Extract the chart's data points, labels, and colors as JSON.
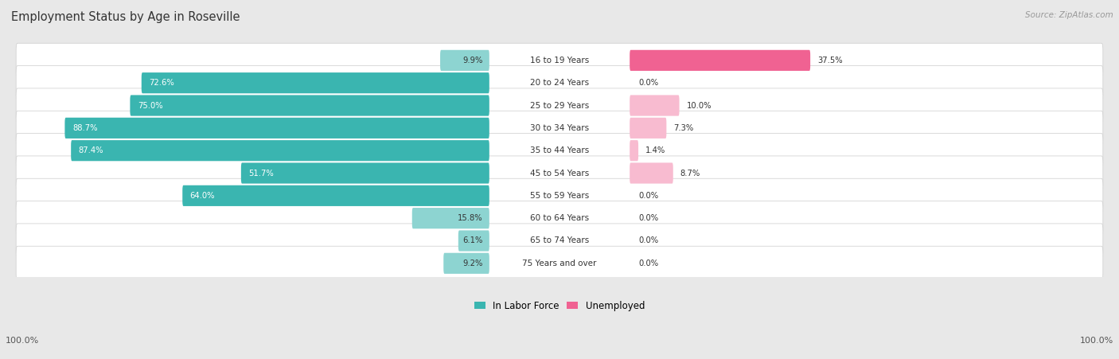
{
  "title": "Employment Status by Age in Roseville",
  "source": "Source: ZipAtlas.com",
  "categories": [
    "16 to 19 Years",
    "20 to 24 Years",
    "25 to 29 Years",
    "30 to 34 Years",
    "35 to 44 Years",
    "45 to 54 Years",
    "55 to 59 Years",
    "60 to 64 Years",
    "65 to 74 Years",
    "75 Years and over"
  ],
  "labor_force": [
    9.9,
    72.6,
    75.0,
    88.7,
    87.4,
    51.7,
    64.0,
    15.8,
    6.1,
    9.2
  ],
  "unemployed": [
    37.5,
    0.0,
    10.0,
    7.3,
    1.4,
    8.7,
    0.0,
    0.0,
    0.0,
    0.0
  ],
  "unemployed_show_zero": [
    true,
    true,
    true,
    true,
    true,
    true,
    true,
    true,
    true,
    true
  ],
  "lf_color_dark": "#3ab5b0",
  "lf_color_light": "#8dd4d1",
  "unemp_color_dark": "#f06292",
  "unemp_color_light": "#f8bbd0",
  "row_bg": "#ffffff",
  "fig_bg": "#e8e8e8",
  "title_color": "#333333",
  "source_color": "#999999",
  "label_color_dark": "#333333",
  "label_color_white": "#ffffff",
  "figsize": [
    14.06,
    4.51
  ],
  "dpi": 100
}
